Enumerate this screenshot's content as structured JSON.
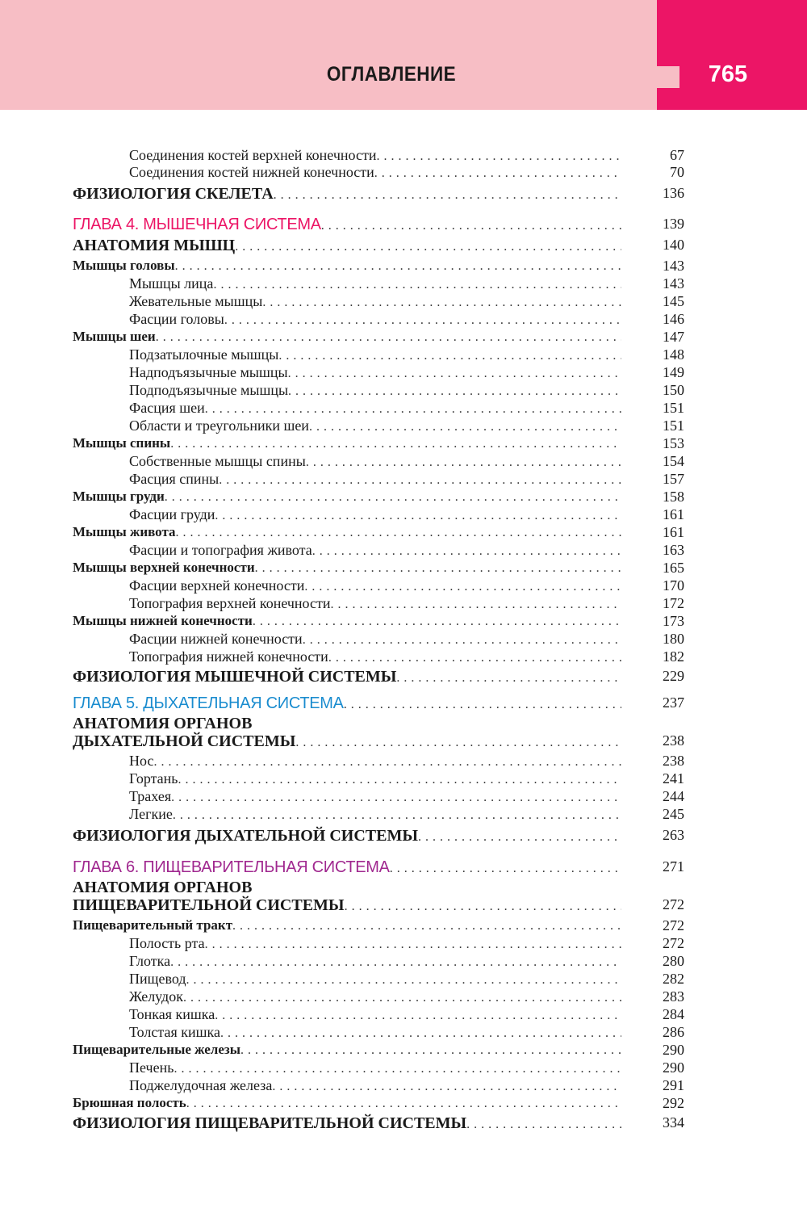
{
  "header": {
    "title": "ОГЛАВЛЕНИЕ",
    "page_number": "765",
    "colors": {
      "band": "#f7bec5",
      "accent": "#ec1566"
    }
  },
  "chapter_colors": {
    "ch4": "#ec1566",
    "ch5": "#1a8ccf",
    "ch6": "#a0288f"
  },
  "entries": [
    {
      "type": "sub",
      "title": "Соединения костей верхней конечности",
      "page": "67"
    },
    {
      "type": "sub",
      "title": "Соединения костей нижней конечности",
      "page": "70"
    },
    {
      "type": "major",
      "title": "ФИЗИОЛОГИЯ СКЕЛЕТА",
      "page": "136"
    },
    {
      "type": "chapter",
      "color": "ch4",
      "title": "ГЛАВА 4. МЫШЕЧНАЯ СИСТЕМА",
      "page": "139"
    },
    {
      "type": "major",
      "title": "АНАТОМИЯ МЫШЦ",
      "page": "140"
    },
    {
      "type": "section",
      "title": "Мышцы головы",
      "page": "143"
    },
    {
      "type": "sub",
      "title": "Мышцы лица",
      "page": "143"
    },
    {
      "type": "sub",
      "title": "Жевательные мышцы",
      "page": "145"
    },
    {
      "type": "sub",
      "title": "Фасции головы",
      "page": "146"
    },
    {
      "type": "section",
      "title": "Мышцы шеи",
      "page": "147"
    },
    {
      "type": "sub",
      "title": "Подзатылочные мышцы",
      "page": "148"
    },
    {
      "type": "sub",
      "title": "Надподъязычные мышцы",
      "page": "149"
    },
    {
      "type": "sub",
      "title": "Подподъязычные мышцы",
      "page": "150"
    },
    {
      "type": "sub",
      "title": "Фасция шеи",
      "page": "151"
    },
    {
      "type": "sub",
      "title": "Области и треугольники шеи",
      "page": "151"
    },
    {
      "type": "section",
      "title": "Мышцы спины",
      "page": "153"
    },
    {
      "type": "sub",
      "title": "Собственные мышцы спины",
      "page": "154"
    },
    {
      "type": "sub",
      "title": "Фасция спины",
      "page": "157"
    },
    {
      "type": "section",
      "title": "Мышцы груди",
      "page": "158"
    },
    {
      "type": "sub",
      "title": "Фасции груди",
      "page": "161"
    },
    {
      "type": "section",
      "title": "Мышцы живота",
      "page": "161"
    },
    {
      "type": "sub",
      "title": "Фасции и топография живота",
      "page": "163"
    },
    {
      "type": "section",
      "title": "Мышцы верхней конечности",
      "page": "165"
    },
    {
      "type": "sub",
      "title": "Фасции верхней конечности",
      "page": "170"
    },
    {
      "type": "sub",
      "title": "Топография верхней конечности",
      "page": "172"
    },
    {
      "type": "section",
      "title": "Мышцы нижней конечности",
      "page": "173"
    },
    {
      "type": "sub",
      "title": "Фасции нижней конечности",
      "page": "180"
    },
    {
      "type": "sub",
      "title": "Топография нижней конечности",
      "page": "182"
    },
    {
      "type": "major",
      "title": "ФИЗИОЛОГИЯ МЫШЕЧНОЙ СИСТЕМЫ",
      "page": "229"
    },
    {
      "type": "chapter",
      "color": "ch5",
      "title": "ГЛАВА 5. ДЫХАТЕЛЬНАЯ СИСТЕМА",
      "page": "237"
    },
    {
      "type": "major",
      "title_prefix": "АНАТОМИЯ ОРГАНОВ",
      "title": "ДЫХАТЕЛЬНОЙ СИСТЕМЫ",
      "page": "238"
    },
    {
      "type": "sub",
      "title": "Нос",
      "page": "238"
    },
    {
      "type": "sub",
      "title": "Гортань",
      "page": "241"
    },
    {
      "type": "sub",
      "title": "Трахея",
      "page": "244"
    },
    {
      "type": "sub",
      "title": "Легкие",
      "page": "245"
    },
    {
      "type": "major",
      "title": "ФИЗИОЛОГИЯ ДЫХАТЕЛЬНОЙ СИСТЕМЫ",
      "page": "263"
    },
    {
      "type": "chapter",
      "color": "ch6",
      "title": "ГЛАВА 6. ПИЩЕВАРИТЕЛЬНАЯ СИСТЕМА",
      "page": "271"
    },
    {
      "type": "major",
      "title_prefix": "АНАТОМИЯ ОРГАНОВ",
      "title": "ПИЩЕВАРИТЕЛЬНОЙ СИСТЕМЫ",
      "page": "272"
    },
    {
      "type": "section",
      "title": "Пищеварительный тракт",
      "page": "272"
    },
    {
      "type": "sub",
      "title": "Полость рта",
      "page": "272"
    },
    {
      "type": "sub",
      "title": "Глотка",
      "page": "280"
    },
    {
      "type": "sub",
      "title": "Пищевод",
      "page": "282"
    },
    {
      "type": "sub",
      "title": "Желудок",
      "page": "283"
    },
    {
      "type": "sub",
      "title": "Тонкая кишка",
      "page": "284"
    },
    {
      "type": "sub",
      "title": "Толстая кишка",
      "page": "286"
    },
    {
      "type": "section",
      "title": "Пищеварительные железы",
      "page": "290"
    },
    {
      "type": "sub",
      "title": "Печень",
      "page": "290"
    },
    {
      "type": "sub",
      "title": "Поджелудочная железа",
      "page": "291"
    },
    {
      "type": "section",
      "title": "Брюшная полость",
      "page": "292"
    },
    {
      "type": "major",
      "title": "ФИЗИОЛОГИЯ ПИЩЕВАРИТЕЛЬНОЙ СИСТЕМЫ",
      "page": "334"
    }
  ]
}
